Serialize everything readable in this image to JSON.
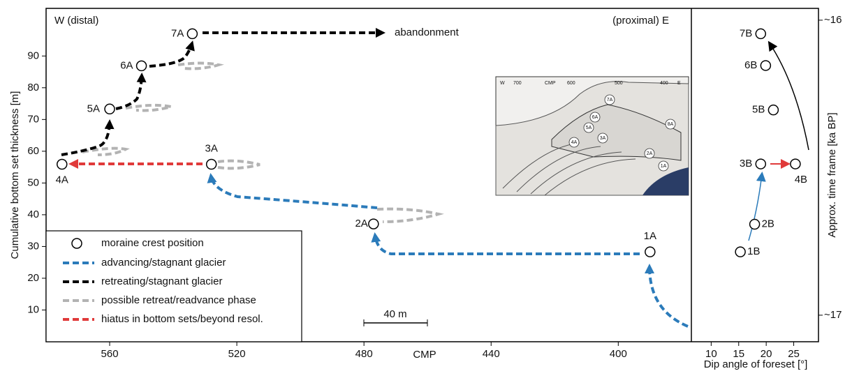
{
  "chart_data": [
    {
      "type": "scatter",
      "x_label": "CMP",
      "y_label": "Cumulative bottom set thickness [m]",
      "xlim": [
        580,
        377
      ],
      "ylim": [
        0,
        105
      ],
      "xticks": [
        560,
        520,
        480,
        440,
        400
      ],
      "yticks": [
        10,
        20,
        30,
        40,
        50,
        60,
        70,
        80,
        90
      ],
      "series": [
        {
          "name": "moraine crest position",
          "color": "#000000",
          "labels": [
            "1A",
            "2A",
            "3A",
            "4A",
            "5A",
            "6A",
            "7A"
          ],
          "x": [
            390,
            477,
            528,
            575,
            560,
            550,
            534
          ],
          "values": [
            28.3,
            37.1,
            55.9,
            55.9,
            73.3,
            86.9,
            97
          ]
        }
      ],
      "lines": [
        {
          "name": "advancing/stagnant glacier",
          "color": "#2b7bba"
        },
        {
          "name": "retreating/stagnant glacier",
          "color": "#000000"
        },
        {
          "name": "possible retreat/readvance phase",
          "color": "#b3b3b3"
        },
        {
          "name": "hiatus in bottom sets/beyond resol.",
          "color": "#e03a3a"
        }
      ],
      "annotations": {
        "west": "W (distal)",
        "east": "(proximal) E",
        "end": "abandonment",
        "scale": "40 m"
      }
    },
    {
      "type": "scatter",
      "x_label": "Dip angle of foreset [°]",
      "y2_label": "Approx. time frame [ka BP]",
      "xlim": [
        6.4,
        29.5
      ],
      "ylim": [
        0,
        105
      ],
      "xticks": [
        10,
        15,
        20,
        25
      ],
      "y2lim": [
        17.09,
        15.96
      ],
      "y2ticks": [
        {
          "value": 16,
          "label": "~16"
        },
        {
          "value": 17,
          "label": "~17"
        }
      ],
      "series": [
        {
          "name": "moraine crest position",
          "color": "#000000",
          "labels": [
            "1B",
            "2B",
            "3B",
            "4B",
            "5B",
            "6B",
            "7B"
          ],
          "x": [
            15.3,
            17.9,
            19,
            25.3,
            21.3,
            19.9,
            19
          ],
          "values": [
            28.3,
            37,
            56,
            56,
            73,
            87,
            97
          ]
        }
      ]
    }
  ],
  "inset": {
    "axis": [
      "W",
      "700",
      "CMP",
      "600",
      "500",
      "400",
      "E"
    ],
    "markers": [
      "7A",
      "6A",
      "5A",
      "4A",
      "3A",
      "2A",
      "1A",
      "8A"
    ]
  }
}
